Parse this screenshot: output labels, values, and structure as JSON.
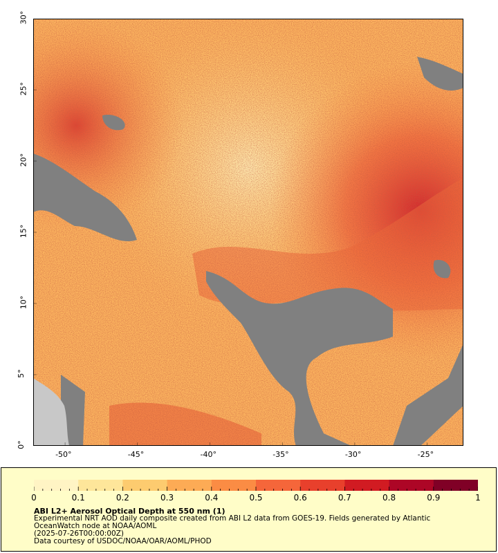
{
  "map": {
    "lon_range": [
      -52.2,
      -22.5
    ],
    "lat_range": [
      0,
      30
    ],
    "x_ticks": [
      "-50°",
      "-45°",
      "-40°",
      "-35°",
      "-30°",
      "-25°"
    ],
    "x_tick_values": [
      -50,
      -45,
      -40,
      -35,
      -30,
      -25
    ],
    "y_ticks": [
      "0°",
      "5°",
      "10°",
      "15°",
      "20°",
      "25°",
      "30°"
    ],
    "y_tick_values": [
      0,
      5,
      10,
      15,
      20,
      25,
      30
    ],
    "no_data_color": "#808080",
    "land_color": "#c8c8c8"
  },
  "colorbar": {
    "labels": [
      "0",
      "0.1",
      "0.2",
      "0.3",
      "0.4",
      "0.5",
      "0.6",
      "0.7",
      "0.8",
      "0.9",
      "1"
    ],
    "range": [
      0,
      1
    ],
    "colors": [
      "#fff4c4",
      "#fee69a",
      "#fdcb6f",
      "#fdab55",
      "#fb8c44",
      "#f5663a",
      "#e8402c",
      "#d11b22",
      "#ad0626",
      "#800026"
    ]
  },
  "info": {
    "title": "ABI L2+ Aerosol Optical Depth at 550 nm (1)",
    "description": "Experimental NRT AOD daily composite created from ABI L2 data from GOES-19. Fields generated by Atlantic OceanWatch node at NOAA/AOML",
    "date": "(2025-07-26T00:00:00Z)",
    "credit": "Data courtesy of USDOC/NOAA/OAR/AOML/PHOD"
  }
}
